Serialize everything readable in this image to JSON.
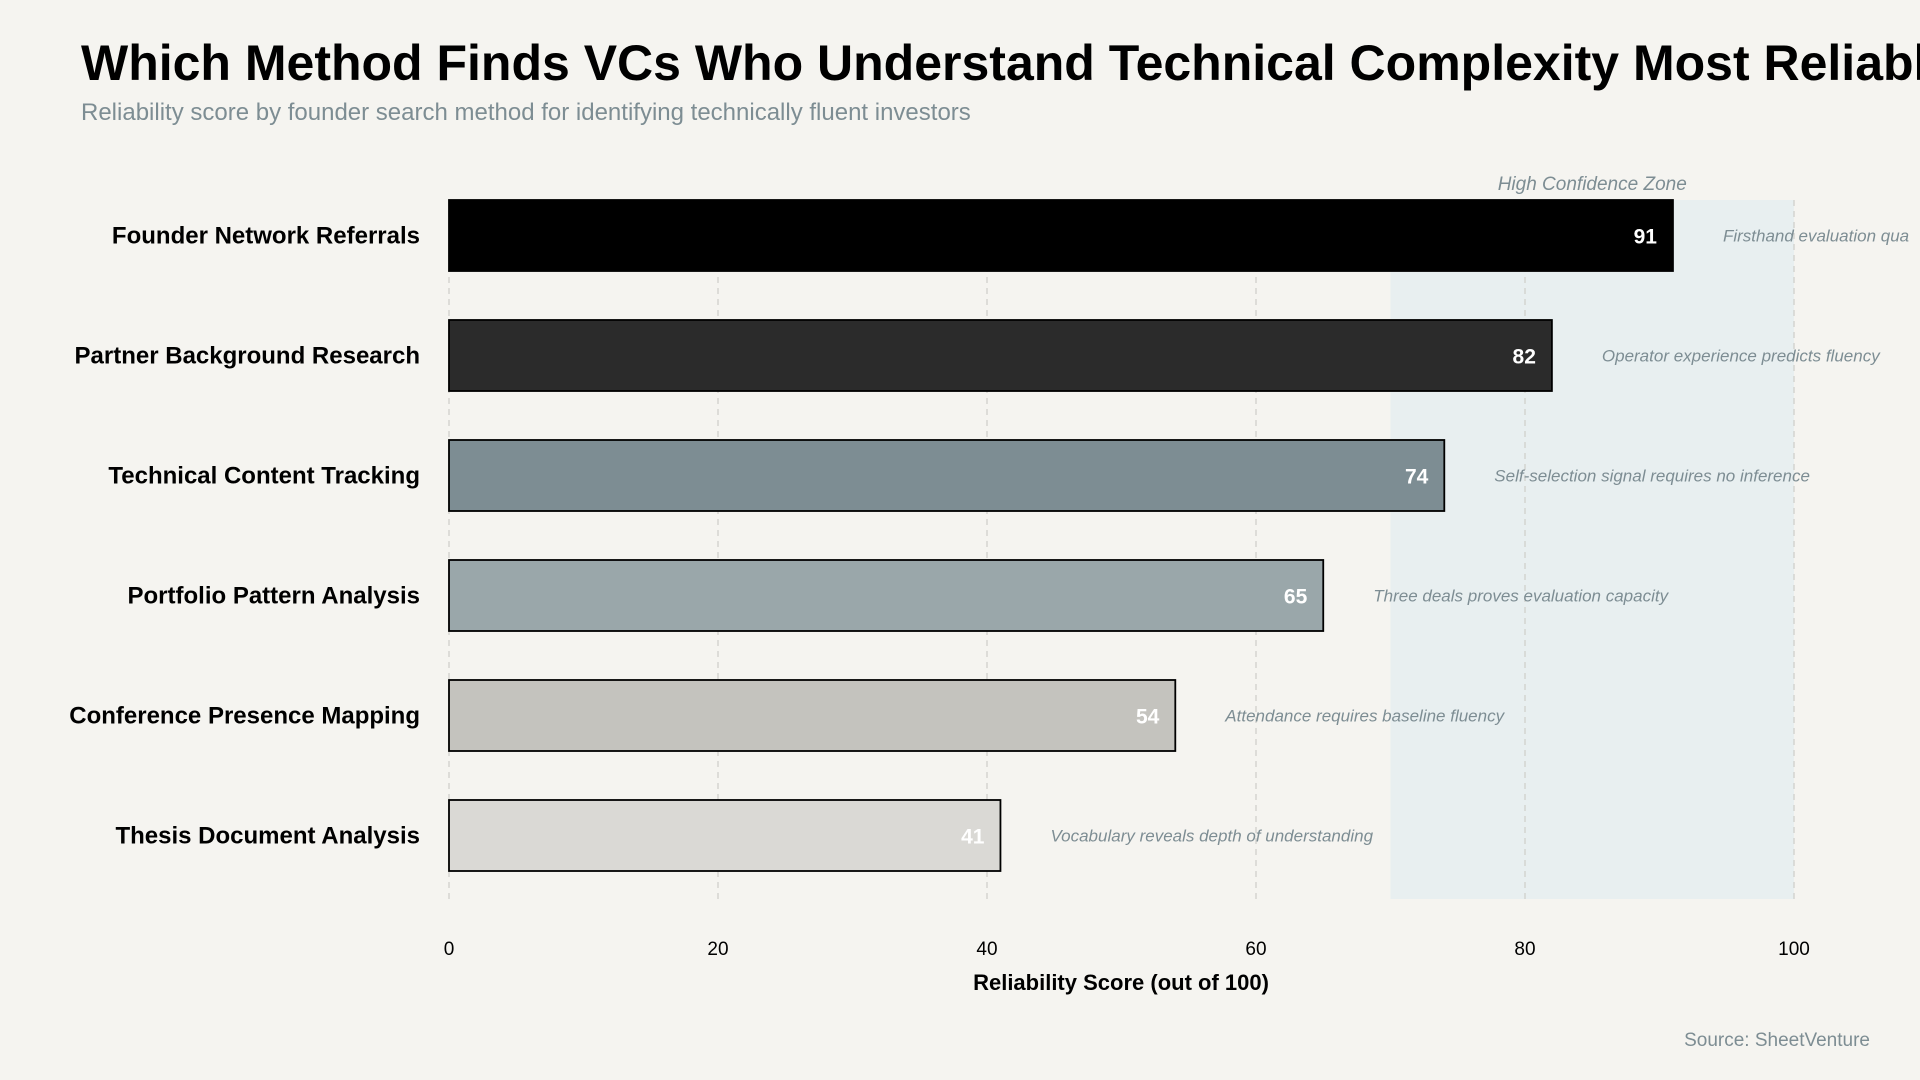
{
  "chart_data": {
    "type": "bar",
    "orientation": "horizontal",
    "title": "Which Method Finds VCs Who Understand Technical Complexity Most Reliably",
    "subtitle": "Reliability score by founder search method for identifying technically fluent investors",
    "xlabel": "Reliability Score (out of 100)",
    "ylabel": "",
    "xlim": [
      0,
      100
    ],
    "xticks": [
      0,
      20,
      40,
      60,
      80,
      100
    ],
    "grid": true,
    "categories": [
      "Founder Network Referrals",
      "Partner Background Research",
      "Technical Content Tracking",
      "Portfolio Pattern Analysis",
      "Conference Presence Mapping",
      "Thesis Document Analysis"
    ],
    "values": [
      91,
      82,
      74,
      65,
      54,
      41
    ],
    "bar_colors": [
      "#000000",
      "#2b2b2b",
      "#7d8d93",
      "#9aa7aa",
      "#c4c3be",
      "#dad9d5"
    ],
    "annotations": [
      "Firsthand evaluation qua",
      "Operator experience predicts fluency",
      "Self-selection signal requires no inference",
      "Three deals proves evaluation capacity",
      "Attendance requires baseline fluency",
      "Vocabulary reveals depth of understanding"
    ],
    "highlight_zone": {
      "label": "High Confidence Zone",
      "from": 70,
      "to": 100,
      "color": "#e8eff0"
    },
    "source": "Source: SheetVenture"
  }
}
